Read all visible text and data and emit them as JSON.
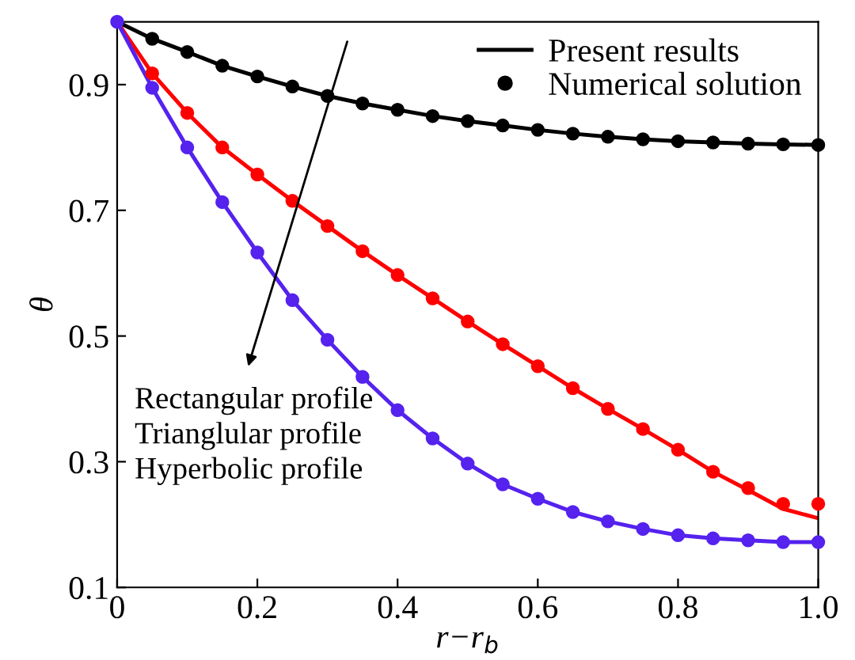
{
  "chart_data": {
    "type": "line",
    "xlabel": "r−r$_{b}$",
    "ylabel": "θ",
    "x": [
      0,
      0.05,
      0.1,
      0.15,
      0.2,
      0.25,
      0.3,
      0.35,
      0.4,
      0.45,
      0.5,
      0.55,
      0.6,
      0.65,
      0.7,
      0.75,
      0.8,
      0.85,
      0.9,
      0.95,
      1.0
    ],
    "series": [
      {
        "name": "Present results",
        "color": "#000000",
        "values": [
          1.0,
          0.973,
          0.952,
          0.93,
          0.913,
          0.897,
          0.882,
          0.87,
          0.86,
          0.85,
          0.842,
          0.835,
          0.828,
          0.822,
          0.817,
          0.813,
          0.81,
          0.808,
          0.806,
          0.805,
          0.804
        ]
      },
      {
        "color": "#ff0000",
        "values": [
          1.0,
          0.918,
          0.855,
          0.8,
          0.757,
          0.715,
          0.675,
          0.635,
          0.597,
          0.56,
          0.523,
          0.487,
          0.452,
          0.417,
          0.384,
          0.352,
          0.319,
          0.284,
          0.255,
          0.225,
          0.21
        ]
      },
      {
        "color": "#5522ee",
        "values": [
          1.0,
          0.895,
          0.8,
          0.713,
          0.633,
          0.557,
          0.494,
          0.435,
          0.382,
          0.337,
          0.297,
          0.264,
          0.241,
          0.22,
          0.205,
          0.193,
          0.183,
          0.178,
          0.175,
          0.172,
          0.172
        ]
      },
      {
        "name": "Numerical solution",
        "type": "scatter",
        "marker": "circle",
        "color": "#000000",
        "values": [
          null,
          0.973,
          0.952,
          0.93,
          0.913,
          0.897,
          0.882,
          0.87,
          0.86,
          0.85,
          0.842,
          0.835,
          0.828,
          0.822,
          0.817,
          0.813,
          0.81,
          0.808,
          0.806,
          0.805,
          0.804
        ]
      },
      {
        "type": "scatter",
        "marker": "circle",
        "color": "#ff0000",
        "values": [
          null,
          0.918,
          0.855,
          0.8,
          0.757,
          0.715,
          0.675,
          0.635,
          0.597,
          0.56,
          0.523,
          0.487,
          0.452,
          0.417,
          0.384,
          0.352,
          0.319,
          0.284,
          0.258,
          0.233,
          0.233
        ]
      },
      {
        "type": "scatter",
        "marker": "circle",
        "color": "#5522ee",
        "values": [
          1.0,
          0.895,
          0.8,
          0.713,
          0.633,
          0.557,
          0.494,
          0.435,
          0.382,
          0.337,
          0.297,
          0.264,
          0.241,
          0.22,
          0.205,
          0.193,
          0.183,
          0.178,
          0.175,
          0.172,
          0.172
        ]
      }
    ],
    "annotations": [
      "Rectangular profile",
      "Trianglular profile",
      "Hyperbolic profile"
    ],
    "xlim": [
      0,
      1.0
    ],
    "ylim": [
      0.1,
      1.0
    ],
    "xticks": [
      0,
      0.2,
      0.4,
      0.6,
      0.8,
      {
        "value": 1.0,
        "label": "1.0"
      }
    ],
    "yticks": [
      0.1,
      0.3,
      0.5,
      0.7,
      0.9
    ],
    "grid": false,
    "legend": "top right",
    "line_style": "solid"
  }
}
